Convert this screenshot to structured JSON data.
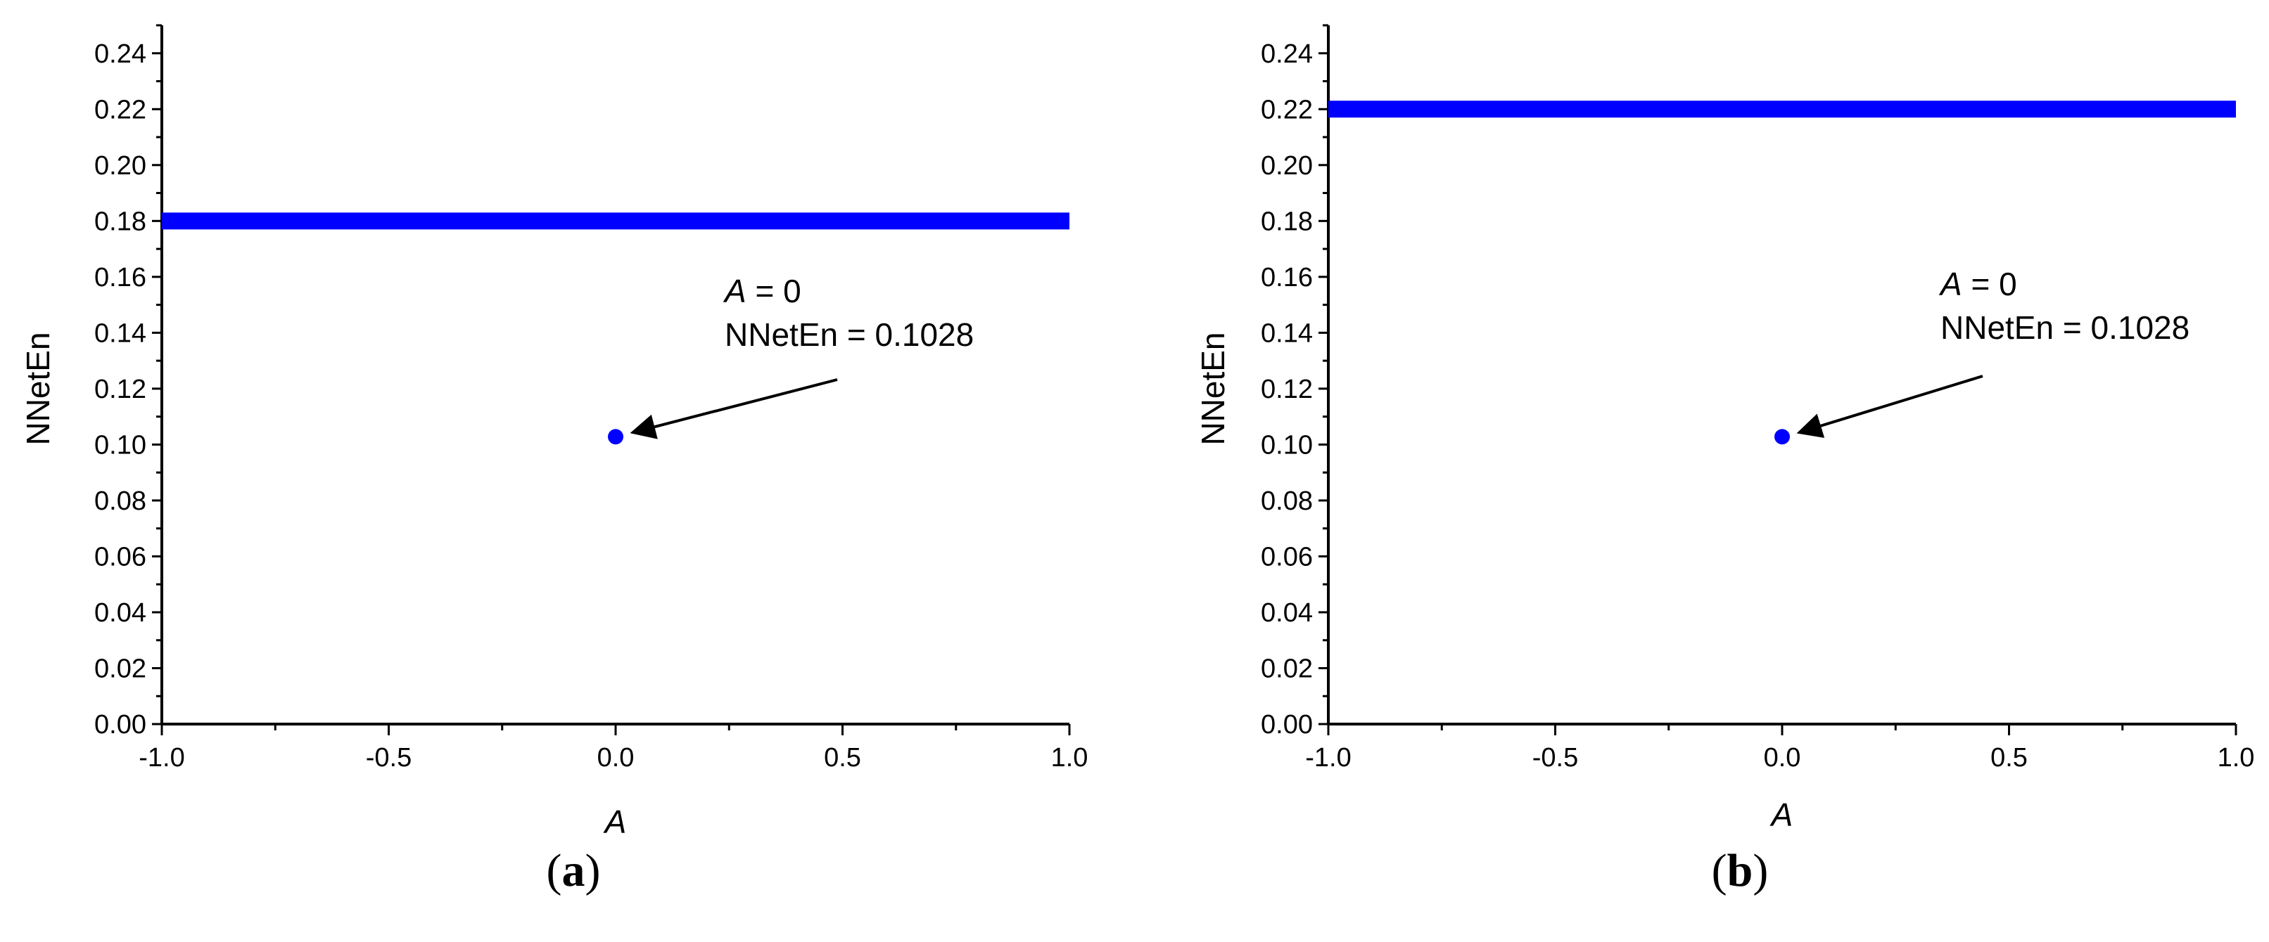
{
  "chart_data": [
    {
      "type": "line",
      "panel_label": "(a)",
      "xlabel": "A",
      "ylabel": "NNetEn",
      "xlim": [
        -1.0,
        1.0
      ],
      "ylim": [
        0.0,
        0.25
      ],
      "x_ticks": [
        "-1.0",
        "-0.5",
        "0.0",
        "0.5",
        "1.0"
      ],
      "y_ticks": [
        "0.00",
        "0.02",
        "0.04",
        "0.06",
        "0.08",
        "0.10",
        "0.12",
        "0.14",
        "0.16",
        "0.18",
        "0.20",
        "0.22",
        "0.24"
      ],
      "series": [
        {
          "x": [
            -1.0,
            1.0
          ],
          "y": [
            0.18,
            0.18
          ],
          "color": "#0000ff"
        }
      ],
      "points": [
        {
          "x": 0.0,
          "y": 0.1028,
          "color": "#0000ff"
        }
      ],
      "annotation": {
        "var": "A",
        "var_rest": " = 0",
        "line2": "NNetEn = 0.1028",
        "arrow_to": {
          "x": 0.0,
          "y": 0.1028
        }
      }
    },
    {
      "type": "line",
      "panel_label": "(b)",
      "xlabel": "A",
      "ylabel": "NNetEn",
      "xlim": [
        -1.0,
        1.0
      ],
      "ylim": [
        0.0,
        0.25
      ],
      "x_ticks": [
        "-1.0",
        "-0.5",
        "0.0",
        "0.5",
        "1.0"
      ],
      "y_ticks": [
        "0.00",
        "0.02",
        "0.04",
        "0.06",
        "0.08",
        "0.10",
        "0.12",
        "0.14",
        "0.16",
        "0.18",
        "0.20",
        "0.22",
        "0.24"
      ],
      "series": [
        {
          "x": [
            -1.0,
            1.0
          ],
          "y": [
            0.22,
            0.22
          ],
          "color": "#0000ff"
        }
      ],
      "points": [
        {
          "x": 0.0,
          "y": 0.1028,
          "color": "#0000ff"
        }
      ],
      "annotation": {
        "var": "A",
        "var_rest": " = 0",
        "line2": "NNetEn = 0.1028",
        "arrow_to": {
          "x": 0.0,
          "y": 0.1028
        }
      }
    }
  ]
}
